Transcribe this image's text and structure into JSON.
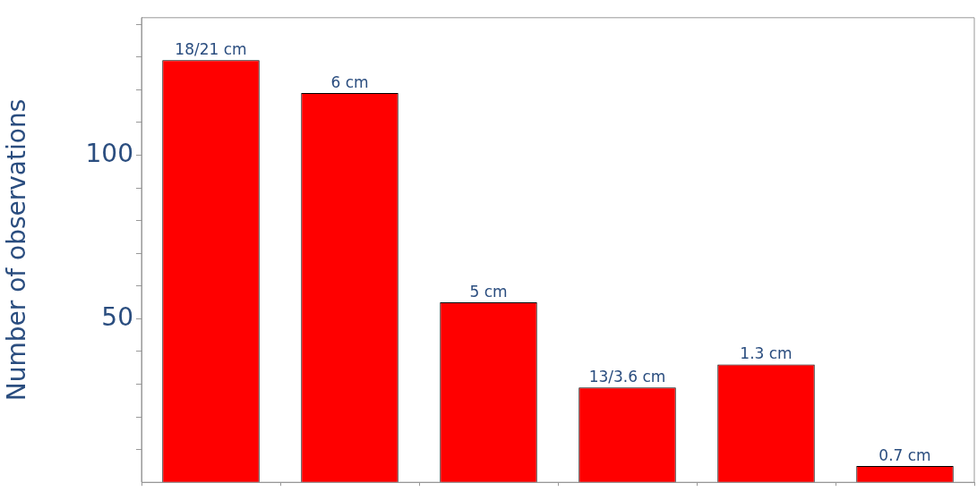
{
  "chart_data": {
    "type": "bar",
    "ylabel": "Number of observations",
    "categories": [
      "18/21 cm",
      "6 cm",
      "5 cm",
      "13/3.6 cm",
      "1.3 cm",
      "0.7 cm"
    ],
    "values": [
      129,
      119,
      55,
      29,
      36,
      5
    ],
    "color": "#ff0000",
    "ylim": [
      0,
      142
    ],
    "yticks": [
      {
        "value": 10,
        "label": null
      },
      {
        "value": 20,
        "label": null
      },
      {
        "value": 30,
        "label": null
      },
      {
        "value": 40,
        "label": null
      },
      50,
      {
        "value": 60,
        "label": null
      },
      {
        "value": 70,
        "label": null
      },
      {
        "value": 80,
        "label": null
      },
      {
        "value": 90,
        "label": null
      },
      100,
      {
        "value": 110,
        "label": null
      },
      {
        "value": 120,
        "label": null
      },
      {
        "value": 130,
        "label": null
      },
      {
        "value": 140,
        "label": null
      }
    ],
    "grid": false,
    "legend": false,
    "tick_labels": "y"
  }
}
